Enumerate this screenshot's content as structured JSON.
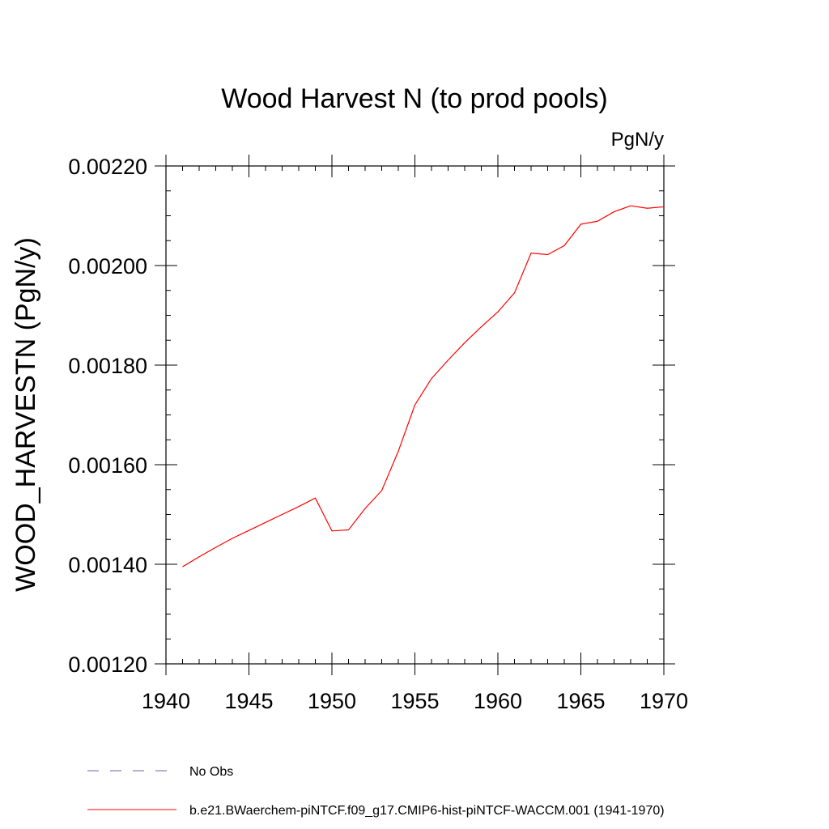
{
  "chart_data": {
    "type": "line",
    "title": "Wood Harvest N (to prod pools)",
    "units_label": "PgN/y",
    "ylabel": "WOOD_HARVESTN  (PgN/y)",
    "xlabel": "",
    "xlim": [
      1940,
      1970
    ],
    "ylim": [
      0.0012,
      0.0022
    ],
    "x_ticks": [
      "1940",
      "1945",
      "1950",
      "1955",
      "1960",
      "1965",
      "1970"
    ],
    "y_ticks": [
      "0.00120",
      "0.00140",
      "0.00160",
      "0.00180",
      "0.00200",
      "0.00220"
    ],
    "grid": false,
    "legend_position": "bottom",
    "series": [
      {
        "name": "No Obs",
        "color": "#6a5fb0",
        "dash": "dashed",
        "x": [],
        "values": []
      },
      {
        "name": "b.e21.BWaerchem-piNTCF.f09_g17.CMIP6-hist-piNTCF-WACCM.001 (1941-1970)",
        "color": "#ff0000",
        "dash": "solid",
        "x": [
          1941,
          1942,
          1943,
          1944,
          1945,
          1946,
          1947,
          1948,
          1949,
          1950,
          1951,
          1952,
          1953,
          1954,
          1955,
          1956,
          1957,
          1958,
          1959,
          1960,
          1961,
          1962,
          1963,
          1964,
          1965,
          1966,
          1967,
          1968,
          1969,
          1970
        ],
        "values": [
          0.001395,
          0.001415,
          0.001434,
          0.001452,
          0.001468,
          0.001484,
          0.0015,
          0.001516,
          0.001533,
          0.001467,
          0.001469,
          0.001512,
          0.001548,
          0.001627,
          0.00172,
          0.001773,
          0.00181,
          0.001845,
          0.001877,
          0.001907,
          0.001945,
          0.002025,
          0.002022,
          0.00204,
          0.002083,
          0.002089,
          0.002108,
          0.00212,
          0.002115,
          0.002118
        ]
      }
    ]
  }
}
